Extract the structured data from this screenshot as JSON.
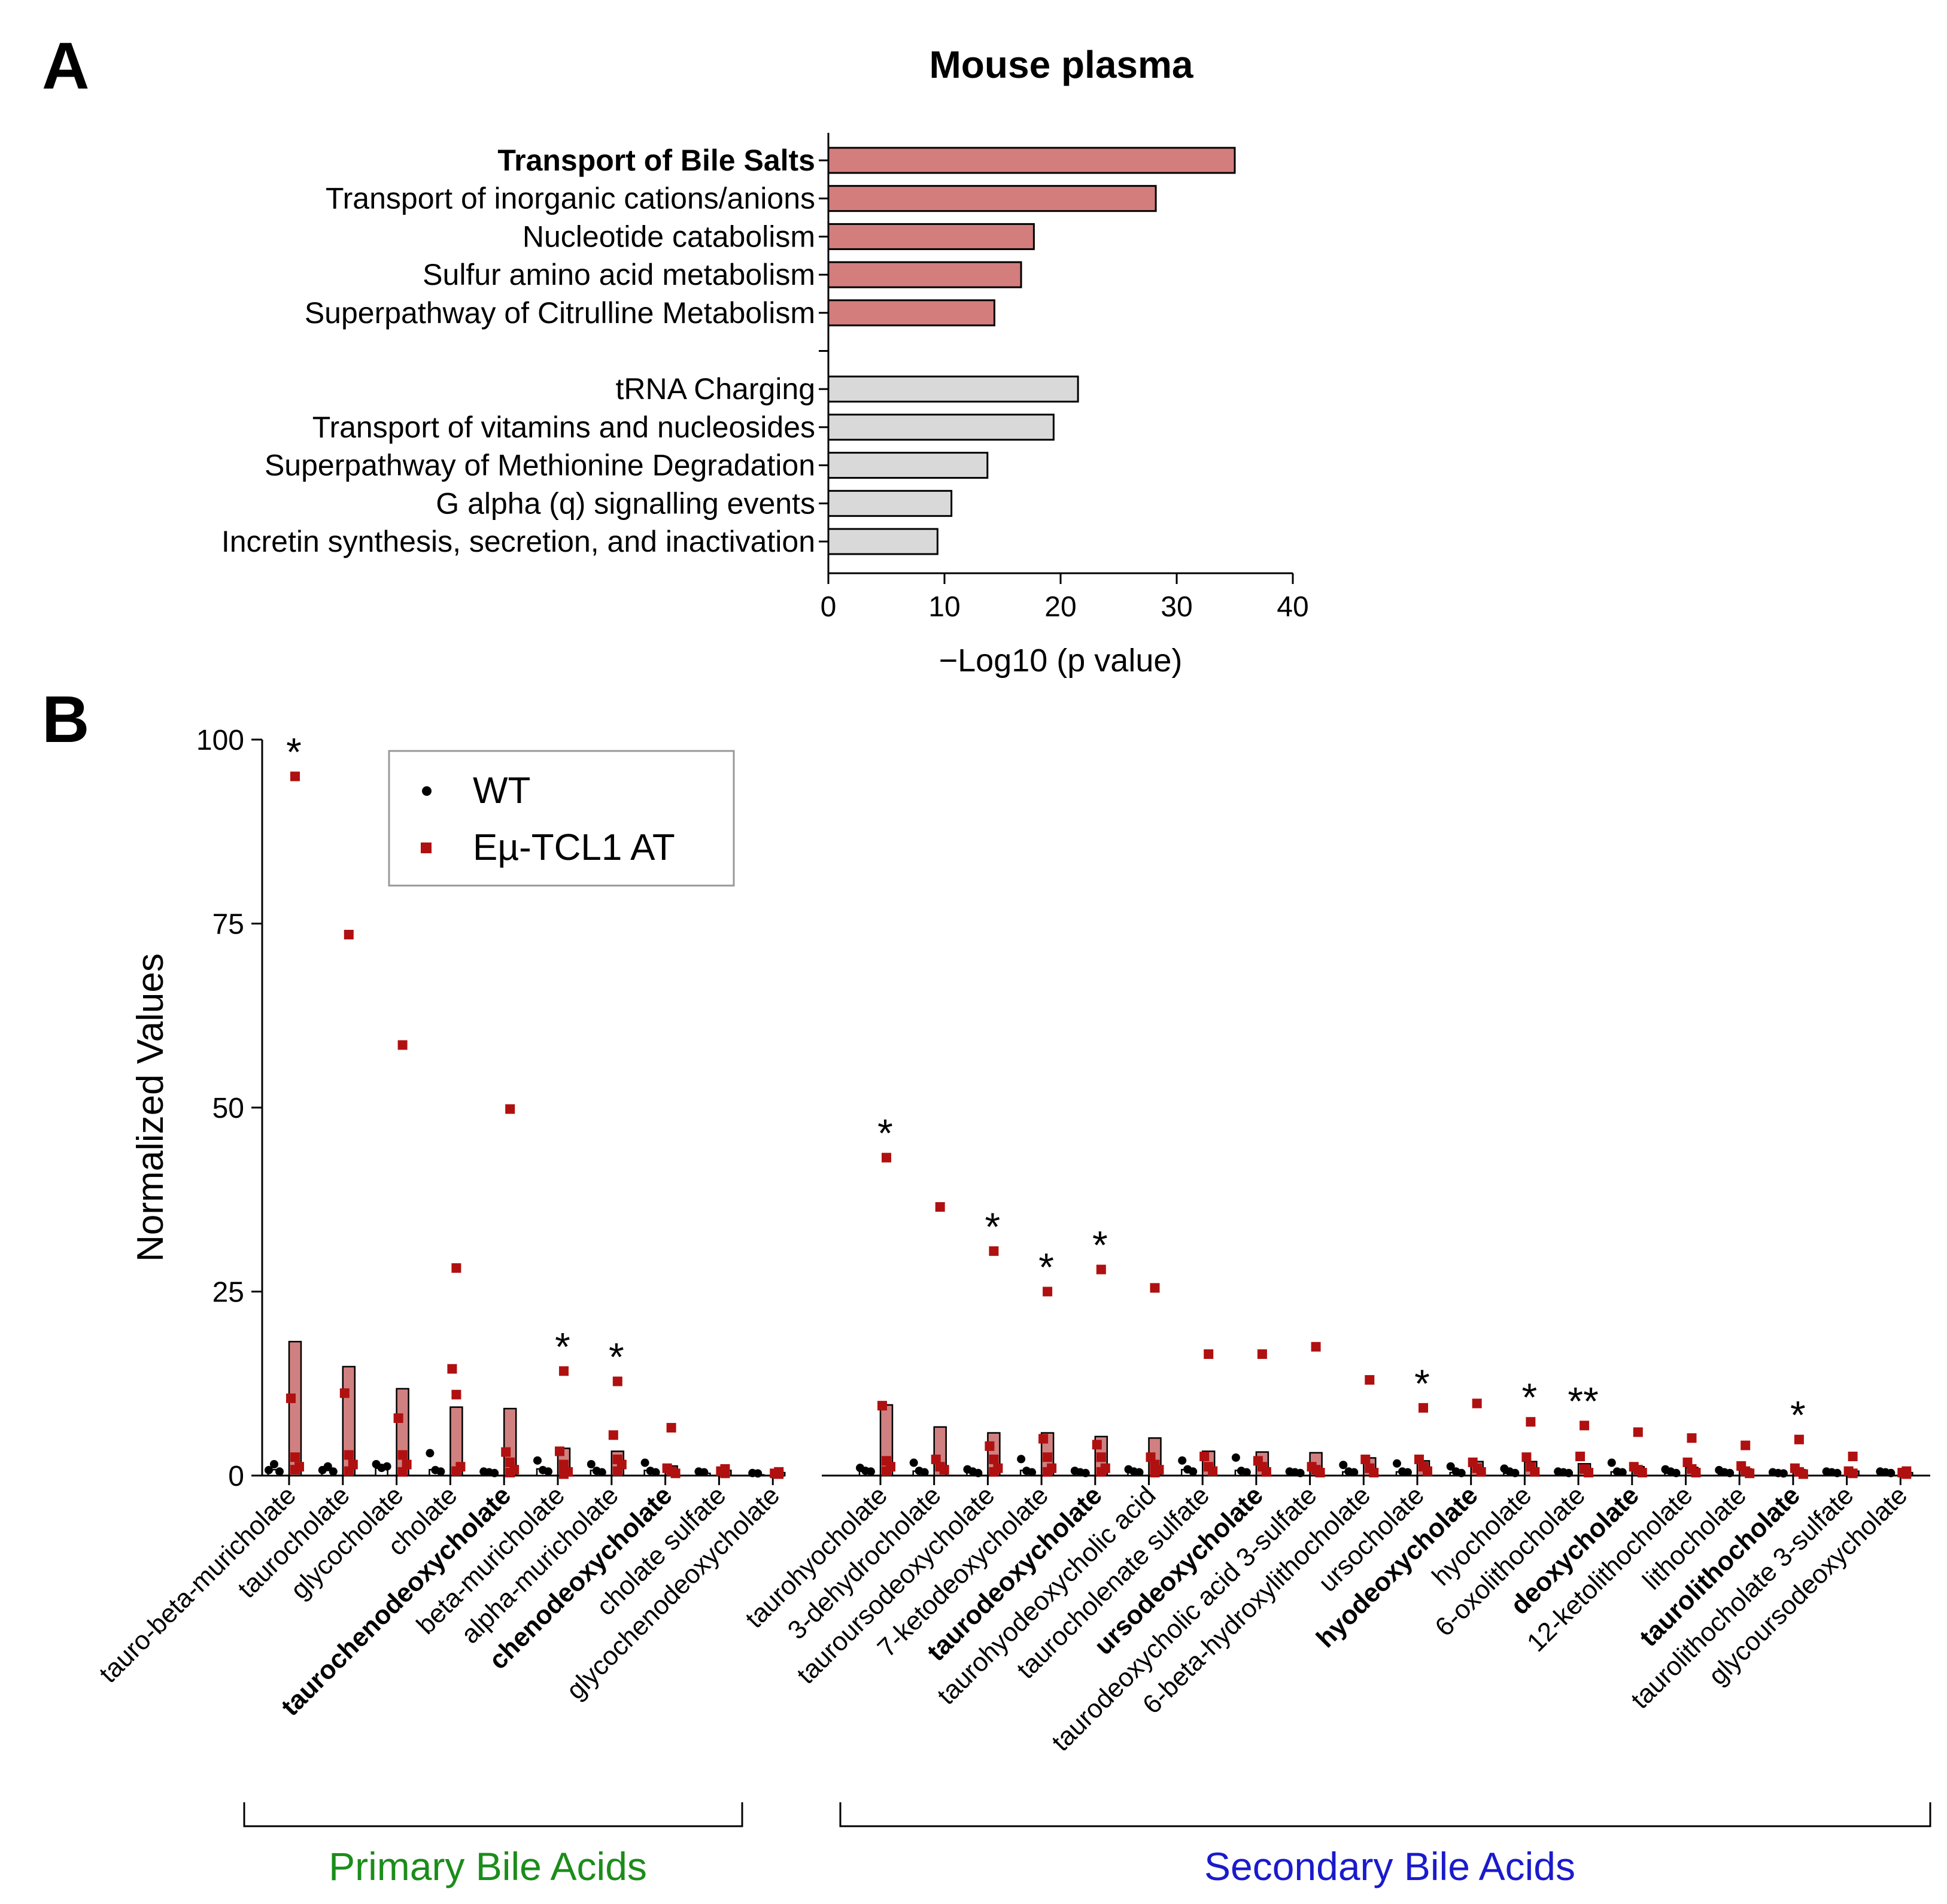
{
  "panel_a_letter": "A",
  "panel_b_letter": "B",
  "chart_data": [
    {
      "type": "bar",
      "orientation": "horizontal",
      "title": "Mouse plasma",
      "xlabel": "−Log10 (p value)",
      "ylabel": "",
      "xlim": [
        0,
        40
      ],
      "xticks": [
        0,
        10,
        20,
        30,
        40
      ],
      "categories": [
        "Transport of Bile Salts",
        "Transport of inorganic cations/anions",
        "Nucleotide catabolism",
        "Sulfur amino acid metabolism",
        "Superpathway of Citrulline Metabolism",
        "",
        "tRNA Charging",
        "Transport of vitamins and nucleosides",
        "Superpathway of Methionine Degradation",
        "G alpha (q) signalling events",
        "Incretin synthesis, secretion, and inactivation"
      ],
      "values": [
        35,
        28.2,
        17.7,
        16.6,
        14.3,
        null,
        21.5,
        19.4,
        13.7,
        10.6,
        9.4
      ],
      "bold_categories": [
        "Transport of Bile Salts"
      ],
      "bar_colors": [
        "#d47d7d",
        "#d47d7d",
        "#d47d7d",
        "#d47d7d",
        "#d47d7d",
        null,
        "#d9d9d9",
        "#d9d9d9",
        "#d9d9d9",
        "#d9d9d9",
        "#d9d9d9"
      ]
    },
    {
      "type": "bar+scatter",
      "title": "",
      "ylabel": "Normalized Values",
      "ylim": [
        0,
        100
      ],
      "yticks": [
        0,
        25,
        50,
        75,
        100
      ],
      "legend": {
        "position": "top-left",
        "entries": [
          {
            "name": "WT",
            "color": "#000000",
            "marker": "circle"
          },
          {
            "name": "Eµ-TCL1 AT",
            "color": "#b01010",
            "marker": "square"
          }
        ]
      },
      "bar_fill": "#d08080",
      "groups": [
        {
          "name": "Primary Bile Acids",
          "color": "#1b8c1b"
        },
        {
          "name": "Secondary Bile Acids",
          "color": "#1a1acc"
        }
      ],
      "categories": [
        {
          "label": "tauro-beta-muricholate",
          "group": 0,
          "bold": false,
          "wt_mean": 0.8,
          "at_mean": 18.2,
          "wt_points": [
            0.5,
            1.3,
            0.3
          ],
          "at_points": [
            95,
            10.5,
            2.5,
            1.2,
            0.8
          ],
          "sig": "*"
        },
        {
          "label": "taurocholate",
          "group": 0,
          "bold": false,
          "wt_mean": 0.7,
          "at_mean": 14.8,
          "wt_points": [
            0.5,
            1.0,
            0.3
          ],
          "at_points": [
            73.5,
            11.2,
            2.8,
            1.5,
            0.6
          ],
          "sig": ""
        },
        {
          "label": "glycocholate",
          "group": 0,
          "bold": false,
          "wt_mean": 1.0,
          "at_mean": 11.8,
          "wt_points": [
            1.3,
            0.8,
            1.0
          ],
          "at_points": [
            58.5,
            7.8,
            2.8,
            1.5,
            0.5
          ],
          "sig": ""
        },
        {
          "label": "cholate",
          "group": 0,
          "bold": false,
          "wt_mean": 0.8,
          "at_mean": 9.3,
          "wt_points": [
            2.8,
            0.5,
            0.3
          ],
          "at_points": [
            28.2,
            14.5,
            11.0,
            1.2,
            0.6
          ],
          "sig": ""
        },
        {
          "label": "taurochenodeoxycholate",
          "group": 0,
          "bold": true,
          "wt_mean": 0.3,
          "at_mean": 9.1,
          "wt_points": [
            0.3,
            0.2,
            0.1
          ],
          "at_points": [
            49.8,
            3.2,
            1.8,
            0.8,
            0.4
          ],
          "sig": ""
        },
        {
          "label": "beta-muricholate",
          "group": 0,
          "bold": false,
          "wt_mean": 0.9,
          "at_mean": 3.7,
          "wt_points": [
            1.8,
            0.5,
            0.3
          ],
          "at_points": [
            14.2,
            3.3,
            1.5,
            0.5,
            0.2
          ],
          "sig": "*"
        },
        {
          "label": "alpha-muricholate",
          "group": 0,
          "bold": false,
          "wt_mean": 0.7,
          "at_mean": 3.3,
          "wt_points": [
            1.3,
            0.4,
            0.2
          ],
          "at_points": [
            12.8,
            5.5,
            2.2,
            1.5,
            0.6
          ],
          "sig": "*"
        },
        {
          "label": "chenodeoxycholate",
          "group": 0,
          "bold": true,
          "wt_mean": 0.7,
          "at_mean": 1.3,
          "wt_points": [
            1.5,
            0.4,
            0.2
          ],
          "at_points": [
            6.5,
            1.0,
            0.6,
            0.3
          ],
          "sig": ""
        },
        {
          "label": "cholate sulfate",
          "group": 0,
          "bold": false,
          "wt_mean": 0.3,
          "at_mean": 0.7,
          "wt_points": [
            0.3,
            0.2
          ],
          "at_points": [
            0.9,
            0.6,
            0.3
          ],
          "sig": ""
        },
        {
          "label": "glycochenodeoxycholate",
          "group": 0,
          "bold": false,
          "wt_mean": 0.1,
          "at_mean": 0.4,
          "wt_points": [
            0.1,
            0.05
          ],
          "at_points": [
            0.5,
            0.3,
            0.2
          ],
          "sig": ""
        },
        {
          "label": "taurohyocholate",
          "group": 1,
          "bold": false,
          "wt_mean": 0.6,
          "at_mean": 9.6,
          "wt_points": [
            0.8,
            0.4,
            0.3
          ],
          "at_points": [
            43.2,
            9.5,
            2.0,
            1.2,
            0.6
          ],
          "sig": "*"
        },
        {
          "label": "3-dehydrocholate",
          "group": 1,
          "bold": false,
          "wt_mean": 0.6,
          "at_mean": 6.6,
          "wt_points": [
            1.5,
            0.4,
            0.2
          ],
          "at_points": [
            36.5,
            2.2,
            1.2,
            0.8
          ],
          "sig": ""
        },
        {
          "label": "tauroursodeoxycholate",
          "group": 1,
          "bold": false,
          "wt_mean": 0.4,
          "at_mean": 5.8,
          "wt_points": [
            0.6,
            0.3,
            0.1
          ],
          "at_points": [
            30.5,
            4.0,
            2.2,
            1.0,
            0.5
          ],
          "sig": "*"
        },
        {
          "label": "7-ketodeoxycholate",
          "group": 1,
          "bold": false,
          "wt_mean": 0.7,
          "at_mean": 5.8,
          "wt_points": [
            2.0,
            0.4,
            0.2
          ],
          "at_points": [
            25.0,
            5.0,
            2.5,
            1.0,
            0.5
          ],
          "sig": "*"
        },
        {
          "label": "taurodeoxycholate",
          "group": 1,
          "bold": true,
          "wt_mean": 0.3,
          "at_mean": 5.3,
          "wt_points": [
            0.4,
            0.2,
            0.1
          ],
          "at_points": [
            28.0,
            4.2,
            2.5,
            1.0,
            0.5
          ],
          "sig": "*"
        },
        {
          "label": "taurohyodeoxycholic acid",
          "group": 1,
          "bold": false,
          "wt_mean": 0.4,
          "at_mean": 5.1,
          "wt_points": [
            0.6,
            0.3,
            0.2
          ],
          "at_points": [
            25.5,
            2.5,
            1.5,
            0.8,
            0.4
          ],
          "sig": ""
        },
        {
          "label": "taurocholenate sulfate",
          "group": 1,
          "bold": false,
          "wt_mean": 0.8,
          "at_mean": 3.3,
          "wt_points": [
            1.8,
            0.6,
            0.3
          ],
          "at_points": [
            16.5,
            2.6,
            1.2,
            0.6
          ],
          "sig": ""
        },
        {
          "label": "ursodeoxycholate",
          "group": 1,
          "bold": true,
          "wt_mean": 0.7,
          "at_mean": 3.2,
          "wt_points": [
            2.2,
            0.4,
            0.2
          ],
          "at_points": [
            16.5,
            2.0,
            1.2,
            0.5
          ],
          "sig": ""
        },
        {
          "label": "taurodeoxycholic acid 3-sulfate",
          "group": 1,
          "bold": false,
          "wt_mean": 0.2,
          "at_mean": 3.1,
          "wt_points": [
            0.3,
            0.2,
            0.1
          ],
          "at_points": [
            17.5,
            1.2,
            0.8,
            0.4
          ],
          "sig": ""
        },
        {
          "label": "6-beta-hydroxylithocholate",
          "group": 1,
          "bold": false,
          "wt_mean": 0.5,
          "at_mean": 2.4,
          "wt_points": [
            1.2,
            0.3,
            0.2
          ],
          "at_points": [
            13.0,
            2.2,
            1.0,
            0.4
          ],
          "sig": ""
        },
        {
          "label": "ursocholate",
          "group": 1,
          "bold": false,
          "wt_mean": 0.5,
          "at_mean": 2.0,
          "wt_points": [
            1.4,
            0.3,
            0.2
          ],
          "at_points": [
            9.2,
            2.2,
            1.2,
            0.6
          ],
          "sig": "*"
        },
        {
          "label": "hyodeoxycholate",
          "group": 1,
          "bold": true,
          "wt_mean": 0.4,
          "at_mean": 1.9,
          "wt_points": [
            1.0,
            0.3,
            0.1
          ],
          "at_points": [
            9.8,
            1.8,
            1.0,
            0.5
          ],
          "sig": ""
        },
        {
          "label": "hyocholate",
          "group": 1,
          "bold": false,
          "wt_mean": 0.3,
          "at_mean": 1.9,
          "wt_points": [
            0.7,
            0.3,
            0.1
          ],
          "at_points": [
            7.3,
            2.5,
            1.2,
            0.5
          ],
          "sig": "*"
        },
        {
          "label": "6-oxolithocholate",
          "group": 1,
          "bold": false,
          "wt_mean": 0.2,
          "at_mean": 1.6,
          "wt_points": [
            0.3,
            0.2,
            0.1
          ],
          "at_points": [
            6.8,
            2.6,
            0.9,
            0.4
          ],
          "sig": "**"
        },
        {
          "label": "deoxycholate",
          "group": 1,
          "bold": true,
          "wt_mean": 0.5,
          "at_mean": 1.2,
          "wt_points": [
            1.5,
            0.3,
            0.2
          ],
          "at_points": [
            5.9,
            1.2,
            0.8,
            0.4
          ],
          "sig": ""
        },
        {
          "label": "12-ketolithocholate",
          "group": 1,
          "bold": false,
          "wt_mean": 0.3,
          "at_mean": 1.1,
          "wt_points": [
            0.6,
            0.3,
            0.1
          ],
          "at_points": [
            5.1,
            1.8,
            0.9,
            0.4
          ],
          "sig": ""
        },
        {
          "label": "lithocholate",
          "group": 1,
          "bold": false,
          "wt_mean": 0.2,
          "at_mean": 0.9,
          "wt_points": [
            0.5,
            0.2,
            0.1
          ],
          "at_points": [
            4.1,
            1.3,
            0.6,
            0.3
          ],
          "sig": ""
        },
        {
          "label": "taurolithocholate",
          "group": 1,
          "bold": true,
          "wt_mean": 0.1,
          "at_mean": 0.8,
          "wt_points": [
            0.2,
            0.1,
            0.05
          ],
          "at_points": [
            4.9,
            1.0,
            0.5,
            0.2
          ],
          "sig": "*"
        },
        {
          "label": "taurolithocholate 3-sulfate",
          "group": 1,
          "bold": false,
          "wt_mean": 0.2,
          "at_mean": 0.6,
          "wt_points": [
            0.3,
            0.2,
            0.1
          ],
          "at_points": [
            2.6,
            0.6,
            0.3
          ],
          "sig": ""
        },
        {
          "label": "glycoursodeoxycholate",
          "group": 1,
          "bold": false,
          "wt_mean": 0.3,
          "at_mean": 0.4,
          "wt_points": [
            0.3,
            0.2,
            0.1
          ],
          "at_points": [
            0.6,
            0.4,
            0.2
          ],
          "sig": ""
        }
      ]
    }
  ]
}
